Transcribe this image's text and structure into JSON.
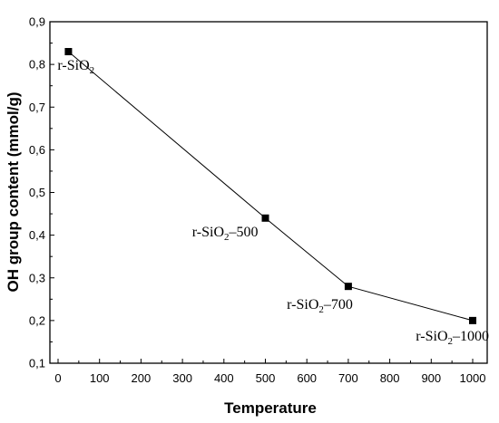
{
  "chart_data": {
    "type": "line",
    "xlabel": "Temperature",
    "ylabel": "OH group content (mmol/g)",
    "xlim": [
      0,
      1000
    ],
    "ylim": [
      0.1,
      0.9
    ],
    "x_ticks": [
      "0",
      "100",
      "200",
      "300",
      "400",
      "500",
      "600",
      "700",
      "800",
      "900",
      "1000"
    ],
    "y_ticks": [
      "0,1",
      "0,2",
      "0,3",
      "0,4",
      "0,5",
      "0,6",
      "0,7",
      "0,8",
      "0,9"
    ],
    "grid": false,
    "series": [
      {
        "x": [
          25,
          500,
          700,
          1000
        ],
        "y": [
          0.83,
          0.44,
          0.28,
          0.2
        ],
        "marker": "square",
        "color": "#000000"
      }
    ],
    "annotations": [
      {
        "text": "r-SiO2",
        "base": "r-SiO",
        "sub": "2",
        "suffix": ""
      },
      {
        "text": "r-SiO2–500",
        "base": "r-SiO",
        "sub": "2",
        "suffix": "–500"
      },
      {
        "text": "r-SiO2–700",
        "base": "r-SiO",
        "sub": "2",
        "suffix": "–700"
      },
      {
        "text": "r-SiO2–1000",
        "base": "r-SiO",
        "sub": "2",
        "suffix": "–1000"
      }
    ]
  }
}
